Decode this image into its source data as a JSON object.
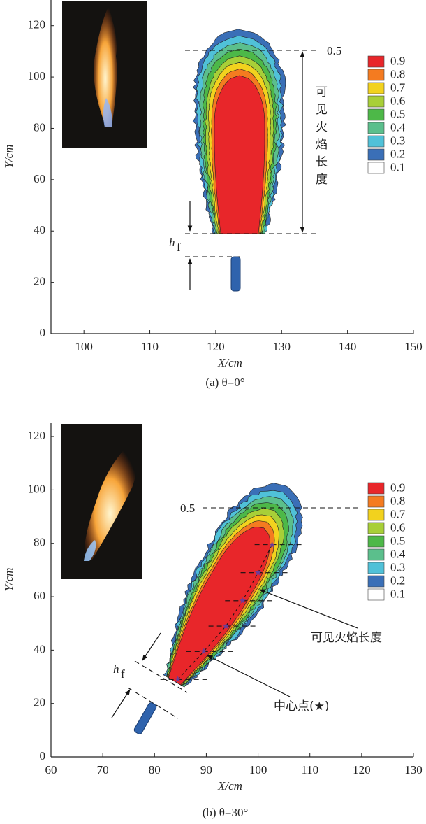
{
  "chart_data": [
    {
      "type": "contour",
      "caption": "(a) θ=0°",
      "xlabel": "X/cm",
      "ylabel": "Y/cm",
      "xlim": [
        95,
        150
      ],
      "ylim": [
        0,
        130
      ],
      "xticks": [
        100,
        110,
        120,
        130,
        140,
        150
      ],
      "yticks": [
        0,
        20,
        40,
        60,
        80,
        100,
        120
      ],
      "levels": [
        0.9,
        0.8,
        0.7,
        0.6,
        0.5,
        0.4,
        0.3,
        0.2,
        0.1
      ],
      "colors": [
        "#e8262a",
        "#f47b20",
        "#f2d21e",
        "#a8cf38",
        "#4db848",
        "#5bbf8c",
        "#50c1d8",
        "#3a6fb7",
        "#ffffff"
      ],
      "contour_label": "0.5",
      "length_label": "可见火焰长度",
      "hf": {
        "main": "h",
        "sub": "f"
      }
    },
    {
      "type": "contour",
      "caption": "(b) θ=30°",
      "xlabel": "X/cm",
      "ylabel": "Y/cm",
      "xlim": [
        60,
        130
      ],
      "ylim": [
        0,
        125
      ],
      "xticks": [
        60,
        70,
        80,
        90,
        100,
        110,
        120,
        130
      ],
      "yticks": [
        0,
        20,
        40,
        60,
        80,
        100,
        120
      ],
      "levels": [
        0.9,
        0.8,
        0.7,
        0.6,
        0.5,
        0.4,
        0.3,
        0.2,
        0.1
      ],
      "colors": [
        "#e8262a",
        "#f47b20",
        "#f2d21e",
        "#a8cf38",
        "#4db848",
        "#5bbf8c",
        "#50c1d8",
        "#3a6fb7",
        "#ffffff"
      ],
      "contour_label": "0.5",
      "length_label": "可见火焰长度",
      "hf": {
        "main": "h",
        "sub": "f"
      },
      "series": [
        {
          "name": "中心点(★)",
          "color": "#6a3d9a",
          "x": [
            84.5,
            89.5,
            93.8,
            97,
            100,
            102.7
          ],
          "y": [
            29,
            39.5,
            49,
            58.5,
            69,
            79.5
          ]
        }
      ]
    }
  ]
}
